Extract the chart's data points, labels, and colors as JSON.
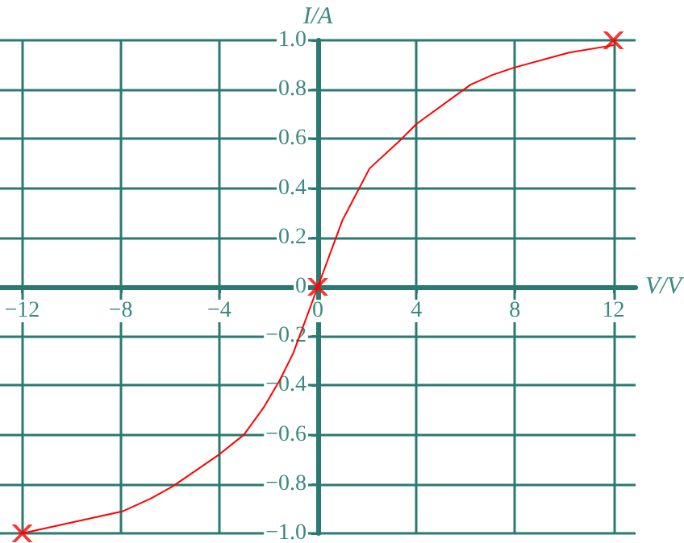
{
  "chart_data": {
    "type": "line",
    "xlabel": "V/V",
    "ylabel": "I/A",
    "xlim": [
      -12.9,
      12.9
    ],
    "xticks": [
      {
        "value": -12,
        "label": "−12"
      },
      {
        "value": -8,
        "label": "−8"
      },
      {
        "value": -4,
        "label": "−4"
      },
      0,
      4,
      8,
      12
    ],
    "ylim": [
      -1.0,
      1.0
    ],
    "yticks": [
      {
        "value": -1,
        "label": "−1.0"
      },
      {
        "value": -0.8,
        "label": "−0.8"
      },
      {
        "value": -0.6,
        "label": "−0.6"
      },
      {
        "value": -0.4,
        "label": "−0.4"
      },
      {
        "value": -0.2,
        "label": "−0.2"
      },
      0,
      0.2,
      0.4,
      0.6,
      0.8,
      {
        "value": 1,
        "label": "1.0"
      }
    ],
    "grid": true,
    "series": [
      {
        "color": "#ff0000",
        "marker": "none",
        "x": [
          -12,
          -7.9,
          -6.8,
          -5.9,
          -4.0,
          -3.0,
          -2.2,
          -1.55,
          -1.0,
          0,
          1.0,
          2.1,
          3.4,
          4.0,
          6.2,
          7.1,
          8.0,
          10.2,
          12
        ],
        "values": [
          -1.0,
          -0.91,
          -0.86,
          -0.81,
          -0.68,
          -0.6,
          -0.49,
          -0.38,
          -0.27,
          0,
          0.27,
          0.48,
          0.6,
          0.66,
          0.82,
          0.86,
          0.89,
          0.95,
          0.98
        ]
      },
      {
        "type": "scatter",
        "color": "#ff0000",
        "marker": "cross",
        "x": [
          -12,
          0,
          12
        ],
        "values": [
          -1.0,
          0,
          1.0
        ]
      }
    ]
  }
}
